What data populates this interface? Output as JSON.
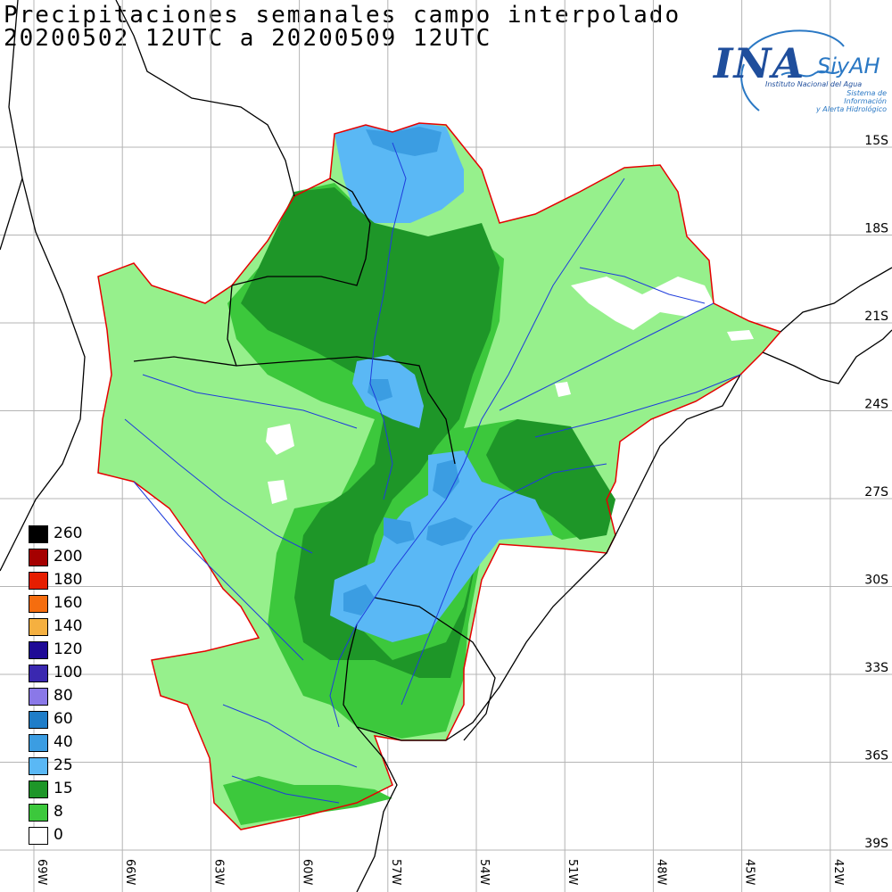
{
  "title_line1": "Precipitaciones semanales campo interpolado",
  "title_line2": "20200502 12UTC a 20200509 12UTC",
  "logo": {
    "name": "INA",
    "system": "SiyAH",
    "institute": "Instituto Nacional del Agua",
    "subtitle_line1": "Sistema de Información",
    "subtitle_line2": "y Alerta Hidrológico"
  },
  "lat_labels": [
    "15S",
    "18S",
    "21S",
    "24S",
    "27S",
    "30S",
    "33S",
    "36S",
    "39S"
  ],
  "lon_labels": [
    "69W",
    "66W",
    "63W",
    "60W",
    "57W",
    "54W",
    "51W",
    "48W",
    "45W",
    "42W"
  ],
  "legend": [
    {
      "label": "260",
      "color": "#000000"
    },
    {
      "label": "200",
      "color": "#a50000"
    },
    {
      "label": "180",
      "color": "#e61e00"
    },
    {
      "label": "160",
      "color": "#f56d0f"
    },
    {
      "label": "140",
      "color": "#f5b040"
    },
    {
      "label": "120",
      "color": "#1e0a96"
    },
    {
      "label": "100",
      "color": "#3a28b0"
    },
    {
      "label": "80",
      "color": "#8a78e8"
    },
    {
      "label": "60",
      "color": "#1f7dc8"
    },
    {
      "label": "40",
      "color": "#3b9de2"
    },
    {
      "label": "25",
      "color": "#5ab8f5"
    },
    {
      "label": "15",
      "color": "#1e9628"
    },
    {
      "label": "8",
      "color": "#3cc83c"
    },
    {
      "label": "0",
      "color": "#ffffff"
    }
  ],
  "field_colors": {
    "light_green": "#96f08c",
    "green": "#3cc83c",
    "dark_green": "#1e9628",
    "light_blue": "#5ab8f5",
    "blue": "#3b9de2",
    "basin_border": "#e60000",
    "coast": "#000000",
    "river": "#1e3cdc"
  }
}
